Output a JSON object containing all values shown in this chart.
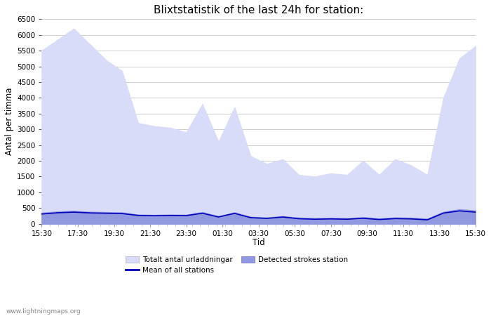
{
  "title": "Blixtstatistik of the last 24h for station:",
  "xlabel": "Tid",
  "ylabel": "Antal per timma",
  "watermark": "www.lightningmaps.org",
  "x_ticks": [
    "15:30",
    "17:30",
    "19:30",
    "21:30",
    "23:30",
    "01:30",
    "03:30",
    "05:30",
    "07:30",
    "09:30",
    "11:30",
    "13:30",
    "15:30"
  ],
  "ylim": [
    0,
    6500
  ],
  "yticks": [
    0,
    500,
    1000,
    1500,
    2000,
    2500,
    3000,
    3500,
    4000,
    4500,
    5000,
    5500,
    6000,
    6500
  ],
  "color_fill_light": "#d8dcf8",
  "color_fill_medium": "#9098e0",
  "color_line": "#0000bb",
  "background_color": "#ffffff",
  "grid_color": "#cccccc",
  "title_fontsize": 11,
  "totalt_values": [
    5500,
    5850,
    6200,
    5700,
    5200,
    4850,
    3200,
    3100,
    3050,
    2900,
    3800,
    2600,
    3700,
    2150,
    1900,
    2050,
    1550,
    1500,
    1600,
    1550,
    2000,
    1550,
    2050,
    1850,
    1550,
    4000,
    5250,
    5650
  ],
  "detected_values": [
    350,
    390,
    410,
    380,
    370,
    360,
    290,
    280,
    290,
    285,
    370,
    240,
    360,
    220,
    200,
    240,
    195,
    175,
    185,
    175,
    210,
    170,
    200,
    190,
    165,
    380,
    460,
    420
  ],
  "mean_values": [
    310,
    350,
    370,
    345,
    335,
    325,
    265,
    255,
    265,
    260,
    335,
    215,
    330,
    195,
    170,
    215,
    160,
    145,
    155,
    145,
    175,
    135,
    165,
    155,
    125,
    340,
    410,
    370
  ]
}
